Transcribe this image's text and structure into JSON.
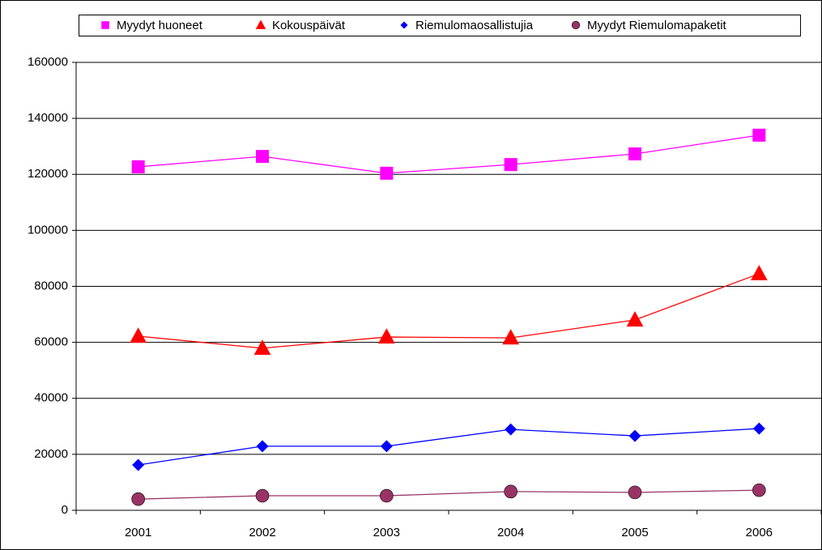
{
  "chart_data": {
    "type": "line",
    "categories": [
      "2001",
      "2002",
      "2003",
      "2004",
      "2005",
      "2006"
    ],
    "series": [
      {
        "name": "Myydyt huoneet",
        "color": "#ff00ff",
        "marker": "square",
        "values": [
          122700,
          126400,
          120400,
          123500,
          127300,
          134000
        ]
      },
      {
        "name": "Kokouspäivät",
        "color": "#ff0000",
        "marker": "triangle",
        "values": [
          62200,
          57900,
          61900,
          61600,
          68000,
          84500
        ]
      },
      {
        "name": "Riemulomaosallistujia",
        "color": "#0000ff",
        "marker": "diamond",
        "values": [
          16200,
          22900,
          22900,
          28900,
          26600,
          29200
        ]
      },
      {
        "name": "Myydyt Riemulomapaketit",
        "color": "#993366",
        "marker": "circle",
        "values": [
          4000,
          5200,
          5200,
          6700,
          6400,
          7200
        ]
      }
    ],
    "ylim": [
      0,
      160000
    ],
    "yticks": [
      0,
      20000,
      40000,
      60000,
      80000,
      100000,
      120000,
      140000,
      160000
    ],
    "grid": true,
    "legend": "top"
  }
}
